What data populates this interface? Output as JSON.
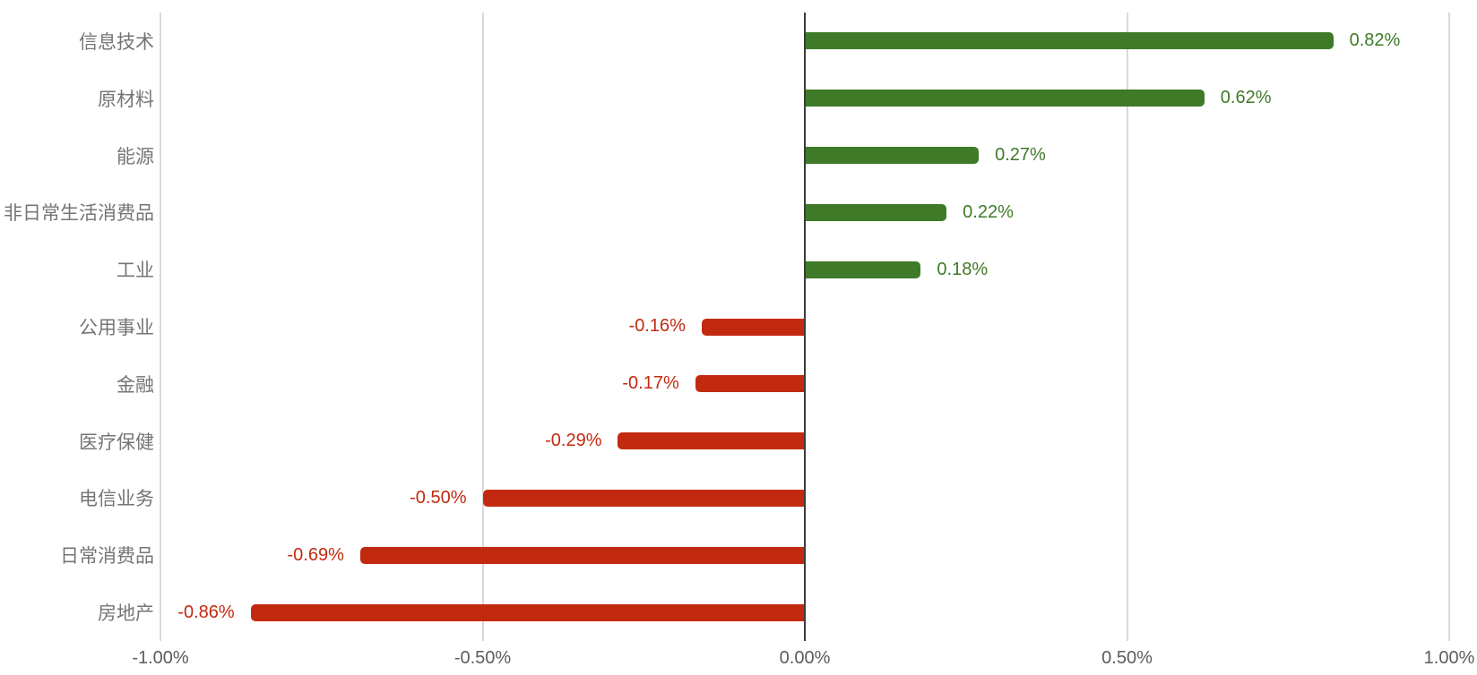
{
  "chart_data": {
    "type": "bar",
    "orientation": "horizontal",
    "title": "",
    "xlabel": "",
    "ylabel": "",
    "legend": "none",
    "grid": true,
    "categories": [
      "信息技术",
      "原材料",
      "能源",
      "非日常生活消费品",
      "工业",
      "公用事业",
      "金融",
      "医疗保健",
      "电信业务",
      "日常消费品",
      "房地产"
    ],
    "values": [
      0.82,
      0.62,
      0.27,
      0.22,
      0.18,
      -0.16,
      -0.17,
      -0.29,
      -0.5,
      -0.69,
      -0.86
    ],
    "value_labels": [
      "0.82%",
      "0.62%",
      "0.27%",
      "0.22%",
      "0.18%",
      "-0.16%",
      "-0.17%",
      "-0.29%",
      "-0.50%",
      "-0.69%",
      "-0.86%"
    ],
    "x_axis": {
      "xlim": [
        -1.0,
        1.0
      ],
      "ticks": [
        {
          "value": -1.0,
          "label": "-1.00%"
        },
        {
          "value": -0.5,
          "label": "-0.50%"
        },
        {
          "value": 0.0,
          "label": "0.00%"
        },
        {
          "value": 0.5,
          "label": "0.50%"
        },
        {
          "value": 1.0,
          "label": "1.00%"
        }
      ]
    },
    "colors": {
      "positive": "#3e7a27",
      "negative": "#c22a10",
      "category_label": "#757575",
      "tick_label": "#5c5c5c",
      "gridline": "#d9d9d9",
      "zero_axis": "#3c3c3c",
      "background": "#ffffff"
    }
  }
}
